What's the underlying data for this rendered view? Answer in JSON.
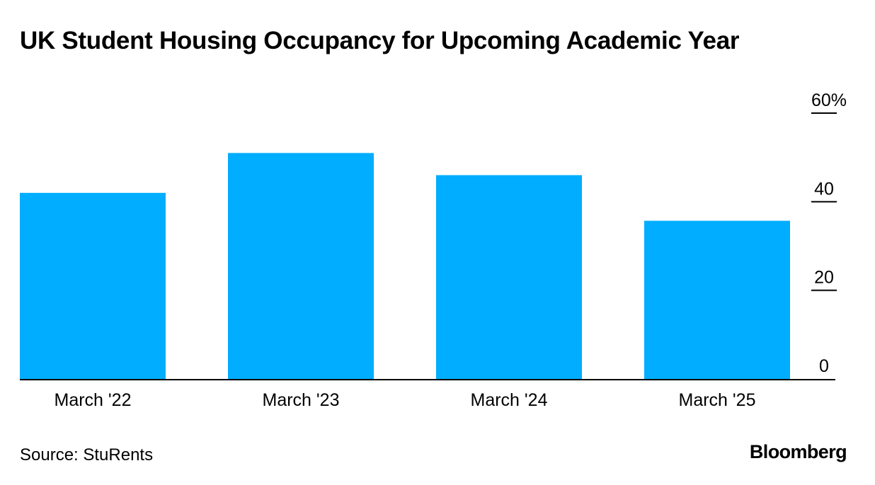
{
  "chart_data": {
    "type": "bar",
    "title": "UK Student Housing Occupancy for Upcoming Academic Year",
    "categories": [
      "March '22",
      "March '23",
      "March '24",
      "March '25"
    ],
    "values": [
      42,
      51,
      46,
      35.7
    ],
    "ylim": [
      0,
      60
    ],
    "yticks": [
      {
        "value": 0,
        "label": "0"
      },
      {
        "value": 20,
        "label": "20"
      },
      {
        "value": 40,
        "label": "40"
      },
      {
        "value": 60,
        "label": "60%"
      }
    ],
    "xlabel": "",
    "ylabel": "",
    "grid": false,
    "axis_side": "right",
    "colors": {
      "bar": "#00adff",
      "axis": "#000000",
      "text": "#000000"
    }
  },
  "footer": {
    "source": "Source: StuRents",
    "brand": "Bloomberg"
  }
}
